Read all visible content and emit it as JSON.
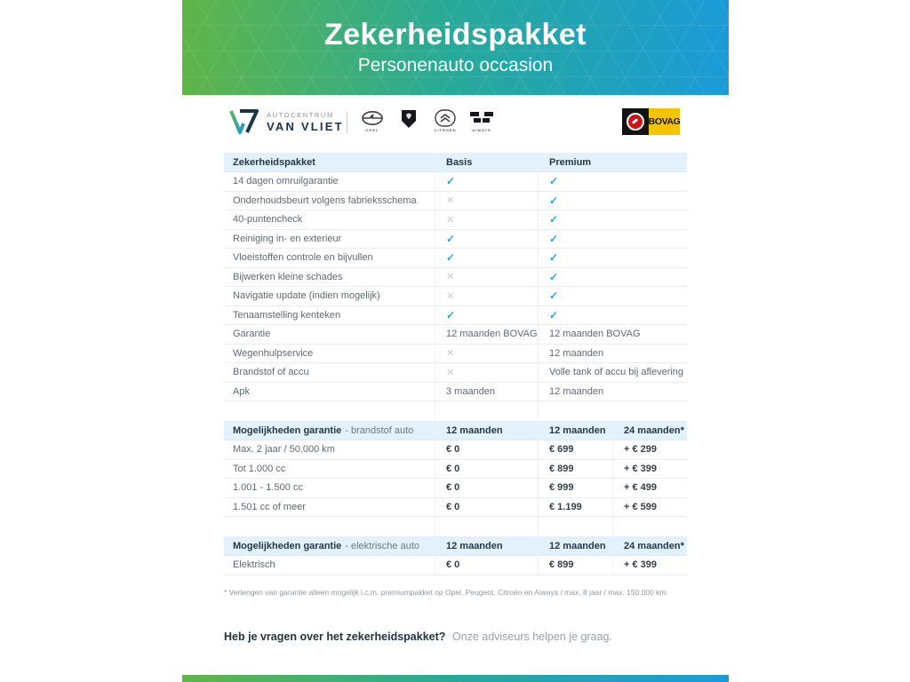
{
  "banner": {
    "title": "Zekerheidspakket",
    "subtitle": "Personenauto occasion"
  },
  "logos": {
    "dealer": {
      "name_top": "AUTOCENTRUM",
      "name_bottom": "VAN VLIET"
    },
    "brands": [
      {
        "name": "opel-logo",
        "label": "OPEL"
      },
      {
        "name": "peugeot-logo",
        "label": ""
      },
      {
        "name": "citroen-logo",
        "label": "CITROEN"
      },
      {
        "name": "aiways-logo",
        "label": "AIWAYS"
      }
    ],
    "bovag": {
      "label": "BOVAG"
    }
  },
  "package_table": {
    "headers": [
      "Zekerheidspakket",
      "Basis",
      "Premium"
    ],
    "rows": [
      {
        "label": "14 dagen omruilgarantie",
        "basis": "check",
        "premium": "check"
      },
      {
        "label": "Onderhoudsbeurt volgens fabrieksschema",
        "basis": "cross",
        "premium": "check"
      },
      {
        "label": "40-puntencheck",
        "basis": "cross",
        "premium": "check"
      },
      {
        "label": "Reiniging in- en exterieur",
        "basis": "check",
        "premium": "check"
      },
      {
        "label": "Vloeistoffen controle en bijvullen",
        "basis": "check",
        "premium": "check"
      },
      {
        "label": "Bijwerken kleine schades",
        "basis": "cross",
        "premium": "check"
      },
      {
        "label": "Navigatie update (indien mogelijk)",
        "basis": "cross",
        "premium": "check"
      },
      {
        "label": "Tenaamstelling kenteken",
        "basis": "check",
        "premium": "check"
      },
      {
        "label": "Garantie",
        "basis": "12 maanden BOVAG",
        "premium": "12 maanden BOVAG"
      },
      {
        "label": "Wegenhulpservice",
        "basis": "cross",
        "premium": "12 maanden"
      },
      {
        "label": "Brandstof of accu",
        "basis": "cross",
        "premium": "Volle tank of accu bij aflevering"
      },
      {
        "label": "Apk",
        "basis": "3 maanden",
        "premium": "12 maanden"
      }
    ]
  },
  "fuel_table": {
    "header": {
      "title_bold": "Mogelijkheden garantie",
      "title_rest": "- brandstof auto",
      "cols": [
        "12 maanden",
        "12 maanden",
        "24 maanden*"
      ]
    },
    "rows": [
      [
        "Max. 2 jaar / 50.000 km",
        "€ 0",
        "€ 699",
        "+ € 299"
      ],
      [
        "Tot 1.000 cc",
        "€ 0",
        "€ 899",
        "+ € 399"
      ],
      [
        "1.001 - 1.500 cc",
        "€ 0",
        "€ 999",
        "+ € 499"
      ],
      [
        "1.501 cc of meer",
        "€ 0",
        "€ 1.199",
        "+ € 599"
      ]
    ]
  },
  "electric_table": {
    "header": {
      "title_bold": "Mogelijkheden garantie",
      "title_rest": "- elektrische auto",
      "cols": [
        "12 maanden",
        "12 maanden",
        "24 maanden*"
      ]
    },
    "rows": [
      [
        "Elektrisch",
        "€ 0",
        "€ 899",
        "+ € 399"
      ]
    ]
  },
  "footnote": "* Verlengen van garantie alleen mogelijk i.c.m. premiumpakket op Opel, Peugeot, Citroën en Aiways / max. 8 jaar / max. 150.000 km.",
  "closing": {
    "question": "Heb je vragen over het zekerheidspakket?",
    "answer": "Onze adviseurs helpen je graag."
  },
  "colors": {
    "accent_green": "#60b548",
    "accent_teal": "#27a99a",
    "accent_blue": "#1a9bd8",
    "table_header_bg": "#e2f1fb",
    "check": "#2ba2da",
    "cross": "#c6cdd2",
    "bovag_yellow": "#f5c400",
    "bovag_red": "#d01317"
  }
}
